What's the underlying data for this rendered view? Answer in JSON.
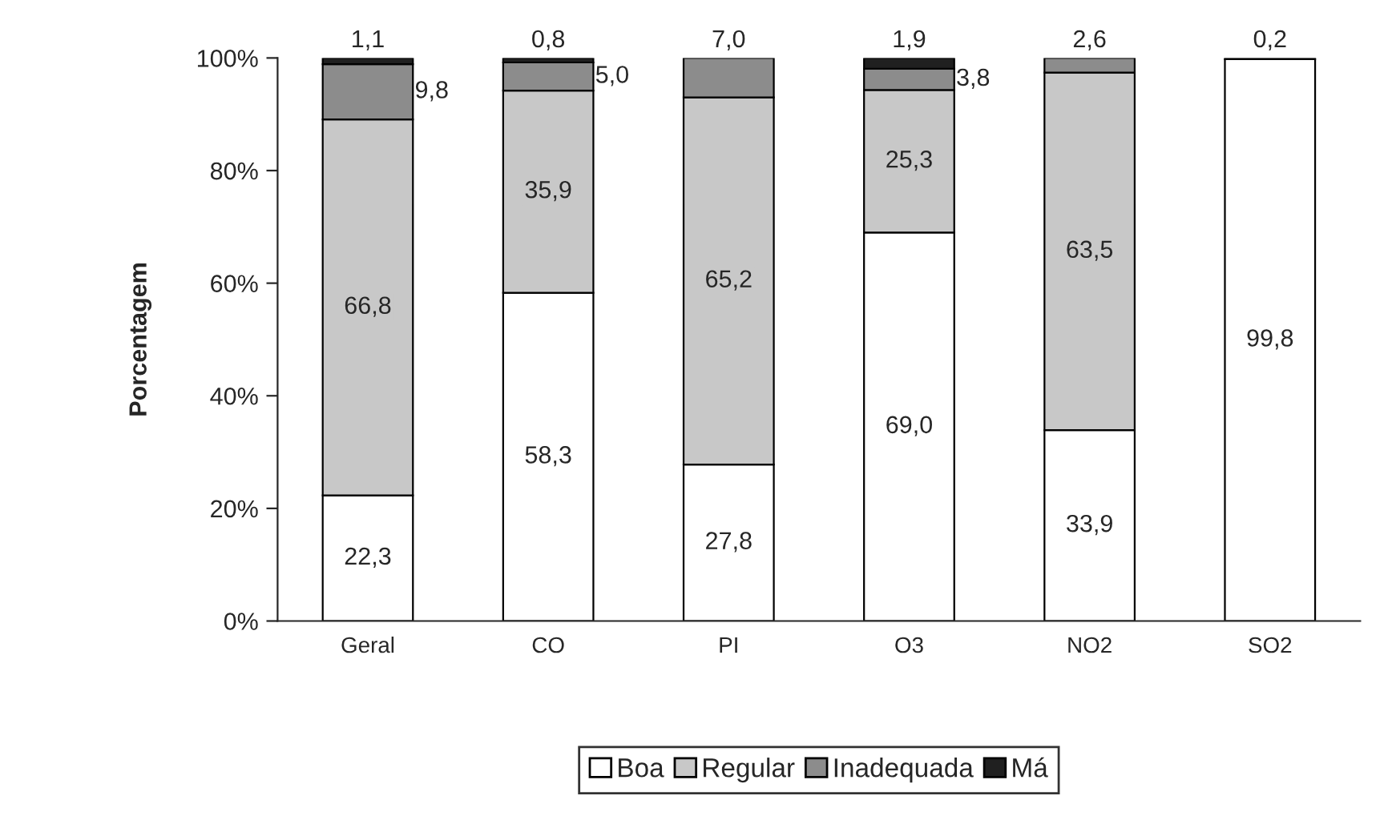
{
  "chart_data": {
    "type": "bar",
    "stacked": true,
    "ylabel": "Porcentagem",
    "categories": [
      "Geral",
      "CO",
      "PI",
      "O3",
      "NO2",
      "SO2"
    ],
    "series": [
      {
        "name": "Boa",
        "color": "#ffffff",
        "values": [
          22.3,
          58.3,
          27.8,
          69.0,
          33.9,
          99.8
        ],
        "value_labels": [
          "22,3",
          "58,3",
          "27,8",
          "69,0",
          "33,9",
          "99,8"
        ]
      },
      {
        "name": "Regular",
        "color": "#c8c8c8",
        "values": [
          66.8,
          35.9,
          65.2,
          25.3,
          63.5,
          0.2
        ],
        "value_labels": [
          "66,8",
          "35,9",
          "65,2",
          "25,3",
          "63,5",
          "0,2"
        ]
      },
      {
        "name": "Inadequada",
        "color": "#8c8c8c",
        "values": [
          9.8,
          5.0,
          7.0,
          3.8,
          2.6,
          null
        ],
        "value_labels": [
          "9,8",
          "5,0",
          "7,0",
          "3,8",
          "2,6",
          null
        ]
      },
      {
        "name": "Má",
        "color": "#202020",
        "values": [
          1.1,
          0.8,
          null,
          1.9,
          null,
          null
        ],
        "value_labels": [
          "1,1",
          "0,8",
          null,
          "1,9",
          null,
          null
        ]
      }
    ],
    "ylim": [
      0,
      100
    ],
    "yticks": [
      {
        "value": 0,
        "label": "0%"
      },
      {
        "value": 20,
        "label": "20%"
      },
      {
        "value": 40,
        "label": "40%"
      },
      {
        "value": 60,
        "label": "60%"
      },
      {
        "value": 80,
        "label": "80%"
      },
      {
        "value": 100,
        "label": "100%"
      }
    ],
    "grid": false,
    "legend": "bottom"
  }
}
